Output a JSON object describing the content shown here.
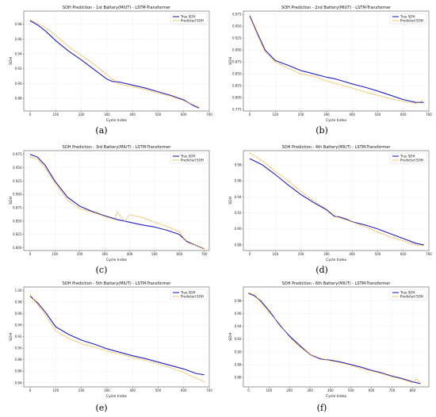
{
  "chart_data": [
    {
      "type": "line",
      "panel_label": "(a)",
      "title": "SOH Prediction - 1st Battery(MIUT) - LSTM-Transformer",
      "xlabel": "Cycle Index",
      "ylabel": "SOH",
      "xlim": [
        -25,
        700
      ],
      "ylim": [
        0.863,
        0.998
      ],
      "xticks": [
        0,
        100,
        200,
        300,
        400,
        500,
        600,
        700
      ],
      "yticks": [
        0.88,
        0.9,
        0.92,
        0.94,
        0.96,
        0.98
      ],
      "ytick_labels": [
        "0.88",
        "0.90",
        "0.92",
        "0.94",
        "0.96",
        "0.98"
      ],
      "legend_position": "top-right",
      "grid": true,
      "series": [
        {
          "name": "True SOH",
          "color": "#1f1fbf",
          "style": "solid",
          "x": [
            0,
            30,
            60,
            100,
            150,
            200,
            250,
            300,
            320,
            350,
            400,
            450,
            500,
            550,
            600,
            640,
            660
          ],
          "y": [
            0.985,
            0.979,
            0.971,
            0.958,
            0.944,
            0.932,
            0.919,
            0.906,
            0.903,
            0.902,
            0.898,
            0.894,
            0.889,
            0.884,
            0.878,
            0.87,
            0.867
          ]
        },
        {
          "name": "Predicted SOH",
          "color": "#f5a623",
          "style": "dashed",
          "x": [
            0,
            30,
            60,
            100,
            150,
            200,
            250,
            300,
            320,
            350,
            400,
            450,
            500,
            550,
            600,
            640,
            660
          ],
          "y": [
            0.986,
            0.981,
            0.976,
            0.965,
            0.95,
            0.938,
            0.926,
            0.912,
            0.906,
            0.899,
            0.896,
            0.892,
            0.887,
            0.883,
            0.877,
            0.871,
            0.868
          ]
        }
      ]
    },
    {
      "type": "line",
      "panel_label": "(b)",
      "title": "SOH Prediction - 2nd Battery(MIUT) - LSTM-Transformer",
      "xlabel": "Cycle Index",
      "ylabel": "SOH",
      "xlim": [
        -25,
        700
      ],
      "ylim": [
        0.772,
        0.982
      ],
      "xticks": [
        0,
        100,
        200,
        300,
        400,
        500,
        600,
        700
      ],
      "yticks": [
        0.775,
        0.8,
        0.825,
        0.85,
        0.875,
        0.9,
        0.925,
        0.95,
        0.975
      ],
      "ytick_labels": [
        "0.775",
        "0.800",
        "0.825",
        "0.850",
        "0.875",
        "0.900",
        "0.925",
        "0.950",
        "0.975"
      ],
      "legend_position": "top-right",
      "grid": true,
      "series": [
        {
          "name": "True SOH",
          "color": "#1f1fbf",
          "style": "solid",
          "x": [
            0,
            30,
            60,
            100,
            150,
            200,
            250,
            300,
            330,
            350,
            400,
            450,
            500,
            550,
            600,
            650,
            680
          ],
          "y": [
            0.972,
            0.935,
            0.9,
            0.878,
            0.868,
            0.857,
            0.85,
            0.843,
            0.84,
            0.837,
            0.829,
            0.822,
            0.814,
            0.805,
            0.796,
            0.79,
            0.79
          ]
        },
        {
          "name": "Predicted SOH",
          "color": "#f5a623",
          "style": "dashed",
          "x": [
            0,
            30,
            60,
            100,
            150,
            200,
            250,
            300,
            350,
            400,
            450,
            500,
            550,
            600,
            650,
            680
          ],
          "y": [
            0.97,
            0.932,
            0.896,
            0.875,
            0.862,
            0.85,
            0.845,
            0.835,
            0.828,
            0.82,
            0.812,
            0.805,
            0.798,
            0.792,
            0.788,
            0.795
          ]
        }
      ]
    },
    {
      "type": "line",
      "panel_label": "(c)",
      "title": "SOH Prediction - 3rd Battery(MIUT) - LSTM-Transformer",
      "xlabel": "Cycle Index",
      "ylabel": "SOH",
      "xlim": [
        -25,
        720
      ],
      "ylim": [
        0.795,
        0.982
      ],
      "xticks": [
        0,
        100,
        200,
        300,
        400,
        500,
        600,
        700
      ],
      "yticks": [
        0.8,
        0.825,
        0.85,
        0.875,
        0.9,
        0.925,
        0.95,
        0.975
      ],
      "ytick_labels": [
        "0.800",
        "0.825",
        "0.850",
        "0.875",
        "0.900",
        "0.925",
        "0.950",
        "0.975"
      ],
      "legend_position": "top-right",
      "grid": true,
      "series": [
        {
          "name": "True SOH",
          "color": "#1f1fbf",
          "style": "solid",
          "x": [
            0,
            30,
            60,
            100,
            150,
            200,
            250,
            300,
            350,
            400,
            450,
            500,
            550,
            600,
            630,
            660,
            700
          ],
          "y": [
            0.975,
            0.97,
            0.955,
            0.925,
            0.895,
            0.878,
            0.868,
            0.86,
            0.853,
            0.848,
            0.843,
            0.839,
            0.833,
            0.825,
            0.812,
            0.806,
            0.798
          ]
        },
        {
          "name": "Predicted SOH",
          "color": "#f5a623",
          "style": "dashed",
          "x": [
            0,
            30,
            60,
            100,
            150,
            200,
            250,
            300,
            340,
            350,
            380,
            400,
            450,
            500,
            550,
            600,
            630,
            660,
            700
          ],
          "y": [
            0.97,
            0.966,
            0.95,
            0.922,
            0.89,
            0.873,
            0.867,
            0.859,
            0.853,
            0.867,
            0.85,
            0.862,
            0.857,
            0.848,
            0.84,
            0.83,
            0.81,
            0.806,
            0.798
          ]
        }
      ]
    },
    {
      "type": "line",
      "panel_label": "(d)",
      "title": "SOH Prediction - 4th Battery(MIUT) - LSTM-Transformer",
      "xlabel": "Cycle Index",
      "ylabel": "SOH",
      "xlim": [
        -25,
        700
      ],
      "ylim": [
        0.873,
        0.998
      ],
      "xticks": [
        0,
        100,
        200,
        300,
        400,
        500,
        600,
        700
      ],
      "yticks": [
        0.88,
        0.9,
        0.92,
        0.94,
        0.96,
        0.98
      ],
      "ytick_labels": [
        "0.88",
        "0.90",
        "0.92",
        "0.94",
        "0.96",
        "0.98"
      ],
      "legend_position": "top-right",
      "grid": true,
      "series": [
        {
          "name": "True SOH",
          "color": "#1f1fbf",
          "style": "solid",
          "x": [
            0,
            50,
            100,
            150,
            200,
            250,
            300,
            330,
            350,
            380,
            400,
            450,
            500,
            550,
            600,
            650,
            680
          ],
          "y": [
            0.988,
            0.98,
            0.968,
            0.955,
            0.943,
            0.933,
            0.924,
            0.916,
            0.915,
            0.912,
            0.909,
            0.905,
            0.9,
            0.894,
            0.888,
            0.882,
            0.88
          ]
        },
        {
          "name": "Predicted SOH",
          "color": "#f5a623",
          "style": "dashed",
          "x": [
            0,
            50,
            100,
            150,
            200,
            250,
            300,
            330,
            350,
            400,
            450,
            500,
            550,
            600,
            650,
            680
          ],
          "y": [
            0.995,
            0.985,
            0.972,
            0.96,
            0.947,
            0.935,
            0.925,
            0.917,
            0.914,
            0.909,
            0.903,
            0.896,
            0.89,
            0.885,
            0.88,
            0.879
          ]
        }
      ]
    },
    {
      "type": "line",
      "panel_label": "(e)",
      "title": "SOH Prediction - 5th Battery(MIUT) - LSTM-Transformer",
      "xlabel": "Cycle Index",
      "ylabel": "SOH",
      "xlim": [
        -25,
        700
      ],
      "ylim": [
        0.833,
        1.006
      ],
      "xticks": [
        0,
        100,
        200,
        300,
        400,
        500,
        600,
        700
      ],
      "yticks": [
        0.84,
        0.86,
        0.88,
        0.9,
        0.92,
        0.94,
        0.96,
        0.98,
        1.0
      ],
      "ytick_labels": [
        "0.84",
        "0.86",
        "0.88",
        "0.90",
        "0.92",
        "0.94",
        "0.96",
        "0.98",
        "1.00"
      ],
      "legend_position": "top-right",
      "grid": true,
      "series": [
        {
          "name": "True SOH",
          "color": "#1f1fbf",
          "style": "solid",
          "x": [
            0,
            30,
            60,
            100,
            150,
            200,
            250,
            300,
            350,
            400,
            450,
            500,
            550,
            600,
            650,
            680
          ],
          "y": [
            0.99,
            0.978,
            0.962,
            0.937,
            0.924,
            0.914,
            0.907,
            0.899,
            0.893,
            0.887,
            0.882,
            0.876,
            0.87,
            0.864,
            0.856,
            0.854
          ]
        },
        {
          "name": "Predicted SOH",
          "color": "#f5a623",
          "style": "dashed",
          "x": [
            0,
            30,
            60,
            100,
            150,
            200,
            250,
            300,
            350,
            400,
            450,
            500,
            550,
            600,
            650,
            680
          ],
          "y": [
            0.993,
            0.975,
            0.958,
            0.93,
            0.917,
            0.908,
            0.902,
            0.895,
            0.89,
            0.884,
            0.879,
            0.873,
            0.866,
            0.858,
            0.848,
            0.842
          ]
        }
      ]
    },
    {
      "type": "line",
      "panel_label": "(f)",
      "title": "SOH Prediction - 6th Battery(MIUT) - LSTM-Transformer",
      "xlabel": "Cycle Index",
      "ylabel": "SOH",
      "xlim": [
        -25,
        880
      ],
      "ylim": [
        0.845,
        1.002
      ],
      "xticks": [
        0,
        100,
        200,
        300,
        400,
        500,
        600,
        700,
        800
      ],
      "yticks": [
        0.86,
        0.88,
        0.9,
        0.92,
        0.94,
        0.96,
        0.98
      ],
      "ytick_labels": [
        "0.86",
        "0.88",
        "0.90",
        "0.92",
        "0.94",
        "0.96",
        "0.98"
      ],
      "legend_position": "top-right",
      "grid": true,
      "series": [
        {
          "name": "True SOH",
          "color": "#1f1fbf",
          "style": "solid",
          "x": [
            0,
            30,
            60,
            100,
            150,
            200,
            250,
            300,
            350,
            400,
            450,
            500,
            550,
            600,
            650,
            700,
            750,
            800,
            840
          ],
          "y": [
            0.992,
            0.988,
            0.98,
            0.965,
            0.943,
            0.925,
            0.91,
            0.896,
            0.889,
            0.887,
            0.884,
            0.88,
            0.876,
            0.871,
            0.867,
            0.862,
            0.858,
            0.853,
            0.85
          ]
        },
        {
          "name": "Predicted SOH",
          "color": "#f5a623",
          "style": "dashed",
          "x": [
            0,
            30,
            60,
            100,
            150,
            200,
            250,
            300,
            350,
            400,
            450,
            500,
            550,
            600,
            650,
            700,
            750,
            800,
            820,
            840
          ],
          "y": [
            0.993,
            0.99,
            0.978,
            0.962,
            0.945,
            0.923,
            0.908,
            0.896,
            0.89,
            0.886,
            0.883,
            0.879,
            0.874,
            0.87,
            0.866,
            0.861,
            0.857,
            0.852,
            0.858,
            0.85
          ]
        }
      ]
    }
  ]
}
